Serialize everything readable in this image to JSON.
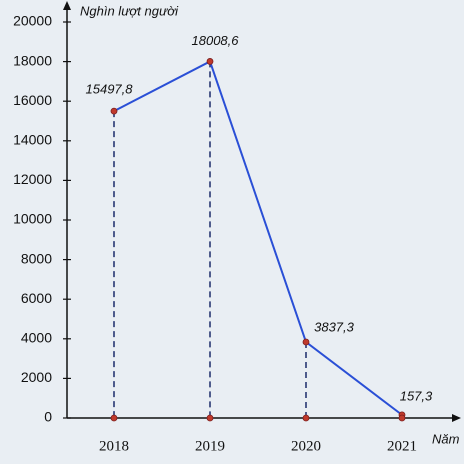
{
  "chart_data": {
    "type": "line",
    "y_label": "Nghìn lượt người",
    "x_label": "Năm",
    "categories": [
      "2018",
      "2019",
      "2020",
      "2021"
    ],
    "values": [
      15497.8,
      18008.6,
      3837.3,
      157.3
    ],
    "value_labels": [
      "15497,8",
      "18008,6",
      "3837,3",
      "157,3"
    ],
    "color": "#2a4fd6",
    "marker_color": "#c0392b",
    "ylim": [
      0,
      20000
    ],
    "yticks": [
      0,
      2000,
      4000,
      6000,
      8000,
      10000,
      12000,
      14000,
      16000,
      18000,
      20000
    ]
  }
}
